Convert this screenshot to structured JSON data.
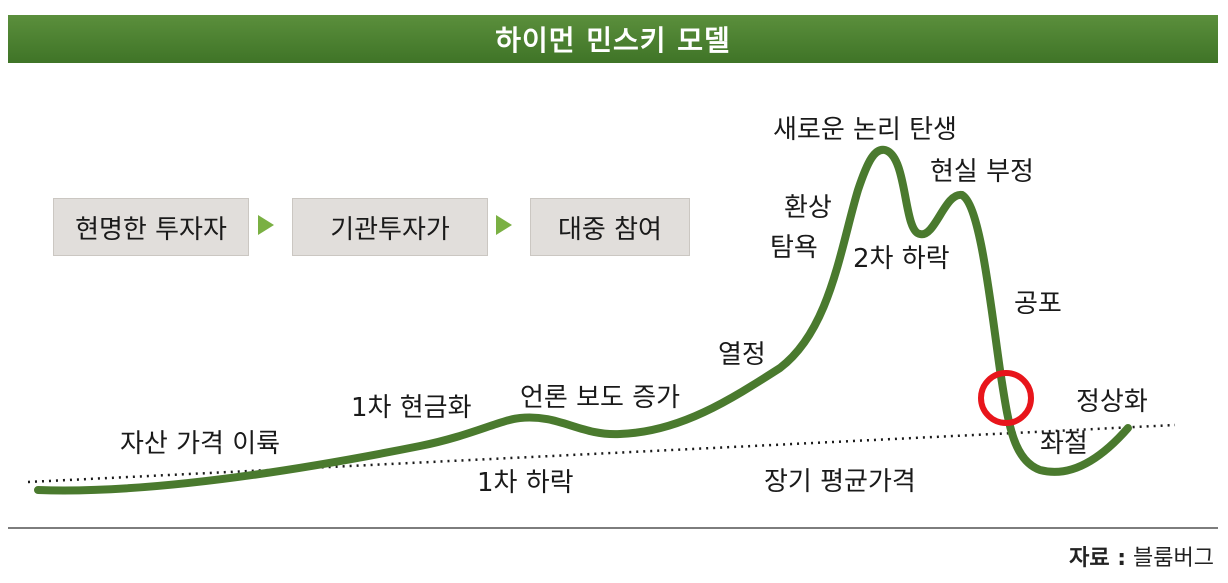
{
  "title": "하이먼 민스키 모델",
  "stages": [
    "현명한 투자자",
    "기관투자가",
    "대중 참여"
  ],
  "labels": {
    "asset_rise": "자산 가격 이륙",
    "first_cash": "1차 현금화",
    "first_fall": "1차 하락",
    "media": "언론 보도 증가",
    "enthusiasm": "열정",
    "euphoria": "환상",
    "greed": "탐욕",
    "new_paradigm": "새로운 논리 탄생",
    "second_fall": "2차 하락",
    "denial": "현실 부정",
    "fear": "공포",
    "despair": "좌절",
    "normalization": "정상화",
    "long_term_mean": "장기 평균가격"
  },
  "source": {
    "key": "자료 :",
    "value": "블룸버그"
  },
  "colors": {
    "title_bar": "#4a7f30",
    "curve": "#4a7a2e",
    "marker": "#e8151b",
    "stage_box": "#e1dedb",
    "arrow": "#7ab043"
  }
}
